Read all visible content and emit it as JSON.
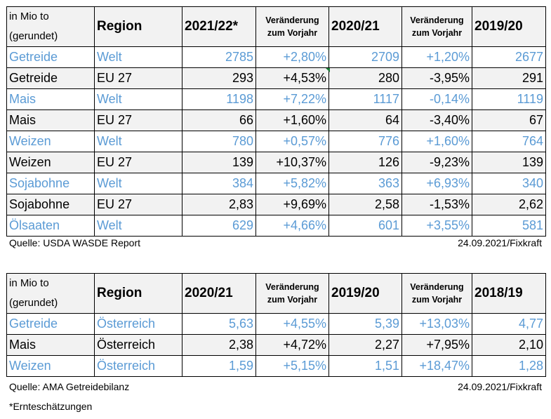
{
  "table1": {
    "headers": {
      "unit_line1": "in Mio to",
      "unit_line2": "(gerundet)",
      "region": "Region",
      "y1": "2021/22*",
      "chg1_line1": "Veränderung",
      "chg1_line2": "zum Vorjahr",
      "y2": "2020/21",
      "chg2_line1": "Veränderung",
      "chg2_line2": "zum Vorjahr",
      "y3": "2019/20"
    },
    "rows": [
      {
        "product": "Getreide",
        "region": "Welt",
        "v1": "2785",
        "c1": "+2,80%",
        "v2": "2709",
        "c2": "+1,20%",
        "v3": "2677"
      },
      {
        "product": "Getreide",
        "region": "EU 27",
        "v1": "293",
        "c1": "+4,53%",
        "v2": "280",
        "c2": "-3,95%",
        "v3": "291"
      },
      {
        "product": "Mais",
        "region": "Welt",
        "v1": "1198",
        "c1": "+7,22%",
        "v2": "1117",
        "c2": "-0,14%",
        "v3": "1119"
      },
      {
        "product": "Mais",
        "region": "EU 27",
        "v1": "66",
        "c1": "+1,60%",
        "v2": "64",
        "c2": "-3,40%",
        "v3": "67"
      },
      {
        "product": "Weizen",
        "region": "Welt",
        "v1": "780",
        "c1": "+0,57%",
        "v2": "776",
        "c2": "+1,60%",
        "v3": "764"
      },
      {
        "product": "Weizen",
        "region": "EU 27",
        "v1": "139",
        "c1": "+10,37%",
        "v2": "126",
        "c2": "-9,23%",
        "v3": "139"
      },
      {
        "product": "Sojabohne",
        "region": "Welt",
        "v1": "384",
        "c1": "+5,82%",
        "v2": "363",
        "c2": "+6,93%",
        "v3": "340"
      },
      {
        "product": "Sojabohne",
        "region": "EU 27",
        "v1": "2,83",
        "c1": "+9,69%",
        "v2": "2,58",
        "c2": "-1,53%",
        "v3": "2,62"
      },
      {
        "product": "Ölsaaten",
        "region": "Welt",
        "v1": "629",
        "c1": "+4,66%",
        "v2": "601",
        "c2": "+3,55%",
        "v3": "581"
      }
    ],
    "source": "Quelle: USDA WASDE Report",
    "date": "24.09.2021/Fixkraft"
  },
  "table2": {
    "headers": {
      "unit_line1": "in Mio to",
      "unit_line2": "(gerundet)",
      "region": "Region",
      "y1": "2020/21",
      "chg1_line1": "Veränderung",
      "chg1_line2": "zum Vorjahr",
      "y2": "2019/20",
      "chg2_line1": "Veränderung",
      "chg2_line2": "zum Vorjahr",
      "y3": "2018/19"
    },
    "rows": [
      {
        "product": "Getreide",
        "region": "Österreich",
        "v1": "5,63",
        "c1": "+4,55%",
        "v2": "5,39",
        "c2": "+13,03%",
        "v3": "4,77"
      },
      {
        "product": "Mais",
        "region": "Österreich",
        "v1": "2,38",
        "c1": "+4,72%",
        "v2": "2,27",
        "c2": "+7,95%",
        "v3": "2,10"
      },
      {
        "product": "Weizen",
        "region": "Österreich",
        "v1": "1,59",
        "c1": "+5,15%",
        "v2": "1,51",
        "c2": "+18,47%",
        "v3": "1,28"
      }
    ],
    "source": "Quelle: AMA Getreidebilanz",
    "date": "24.09.2021/Fixkraft"
  },
  "footnote": "*Ernteschätzungen",
  "colors": {
    "blue_rows": "#5b9bd5",
    "black_rows": "#000000",
    "shade": "#f2f2f2"
  }
}
